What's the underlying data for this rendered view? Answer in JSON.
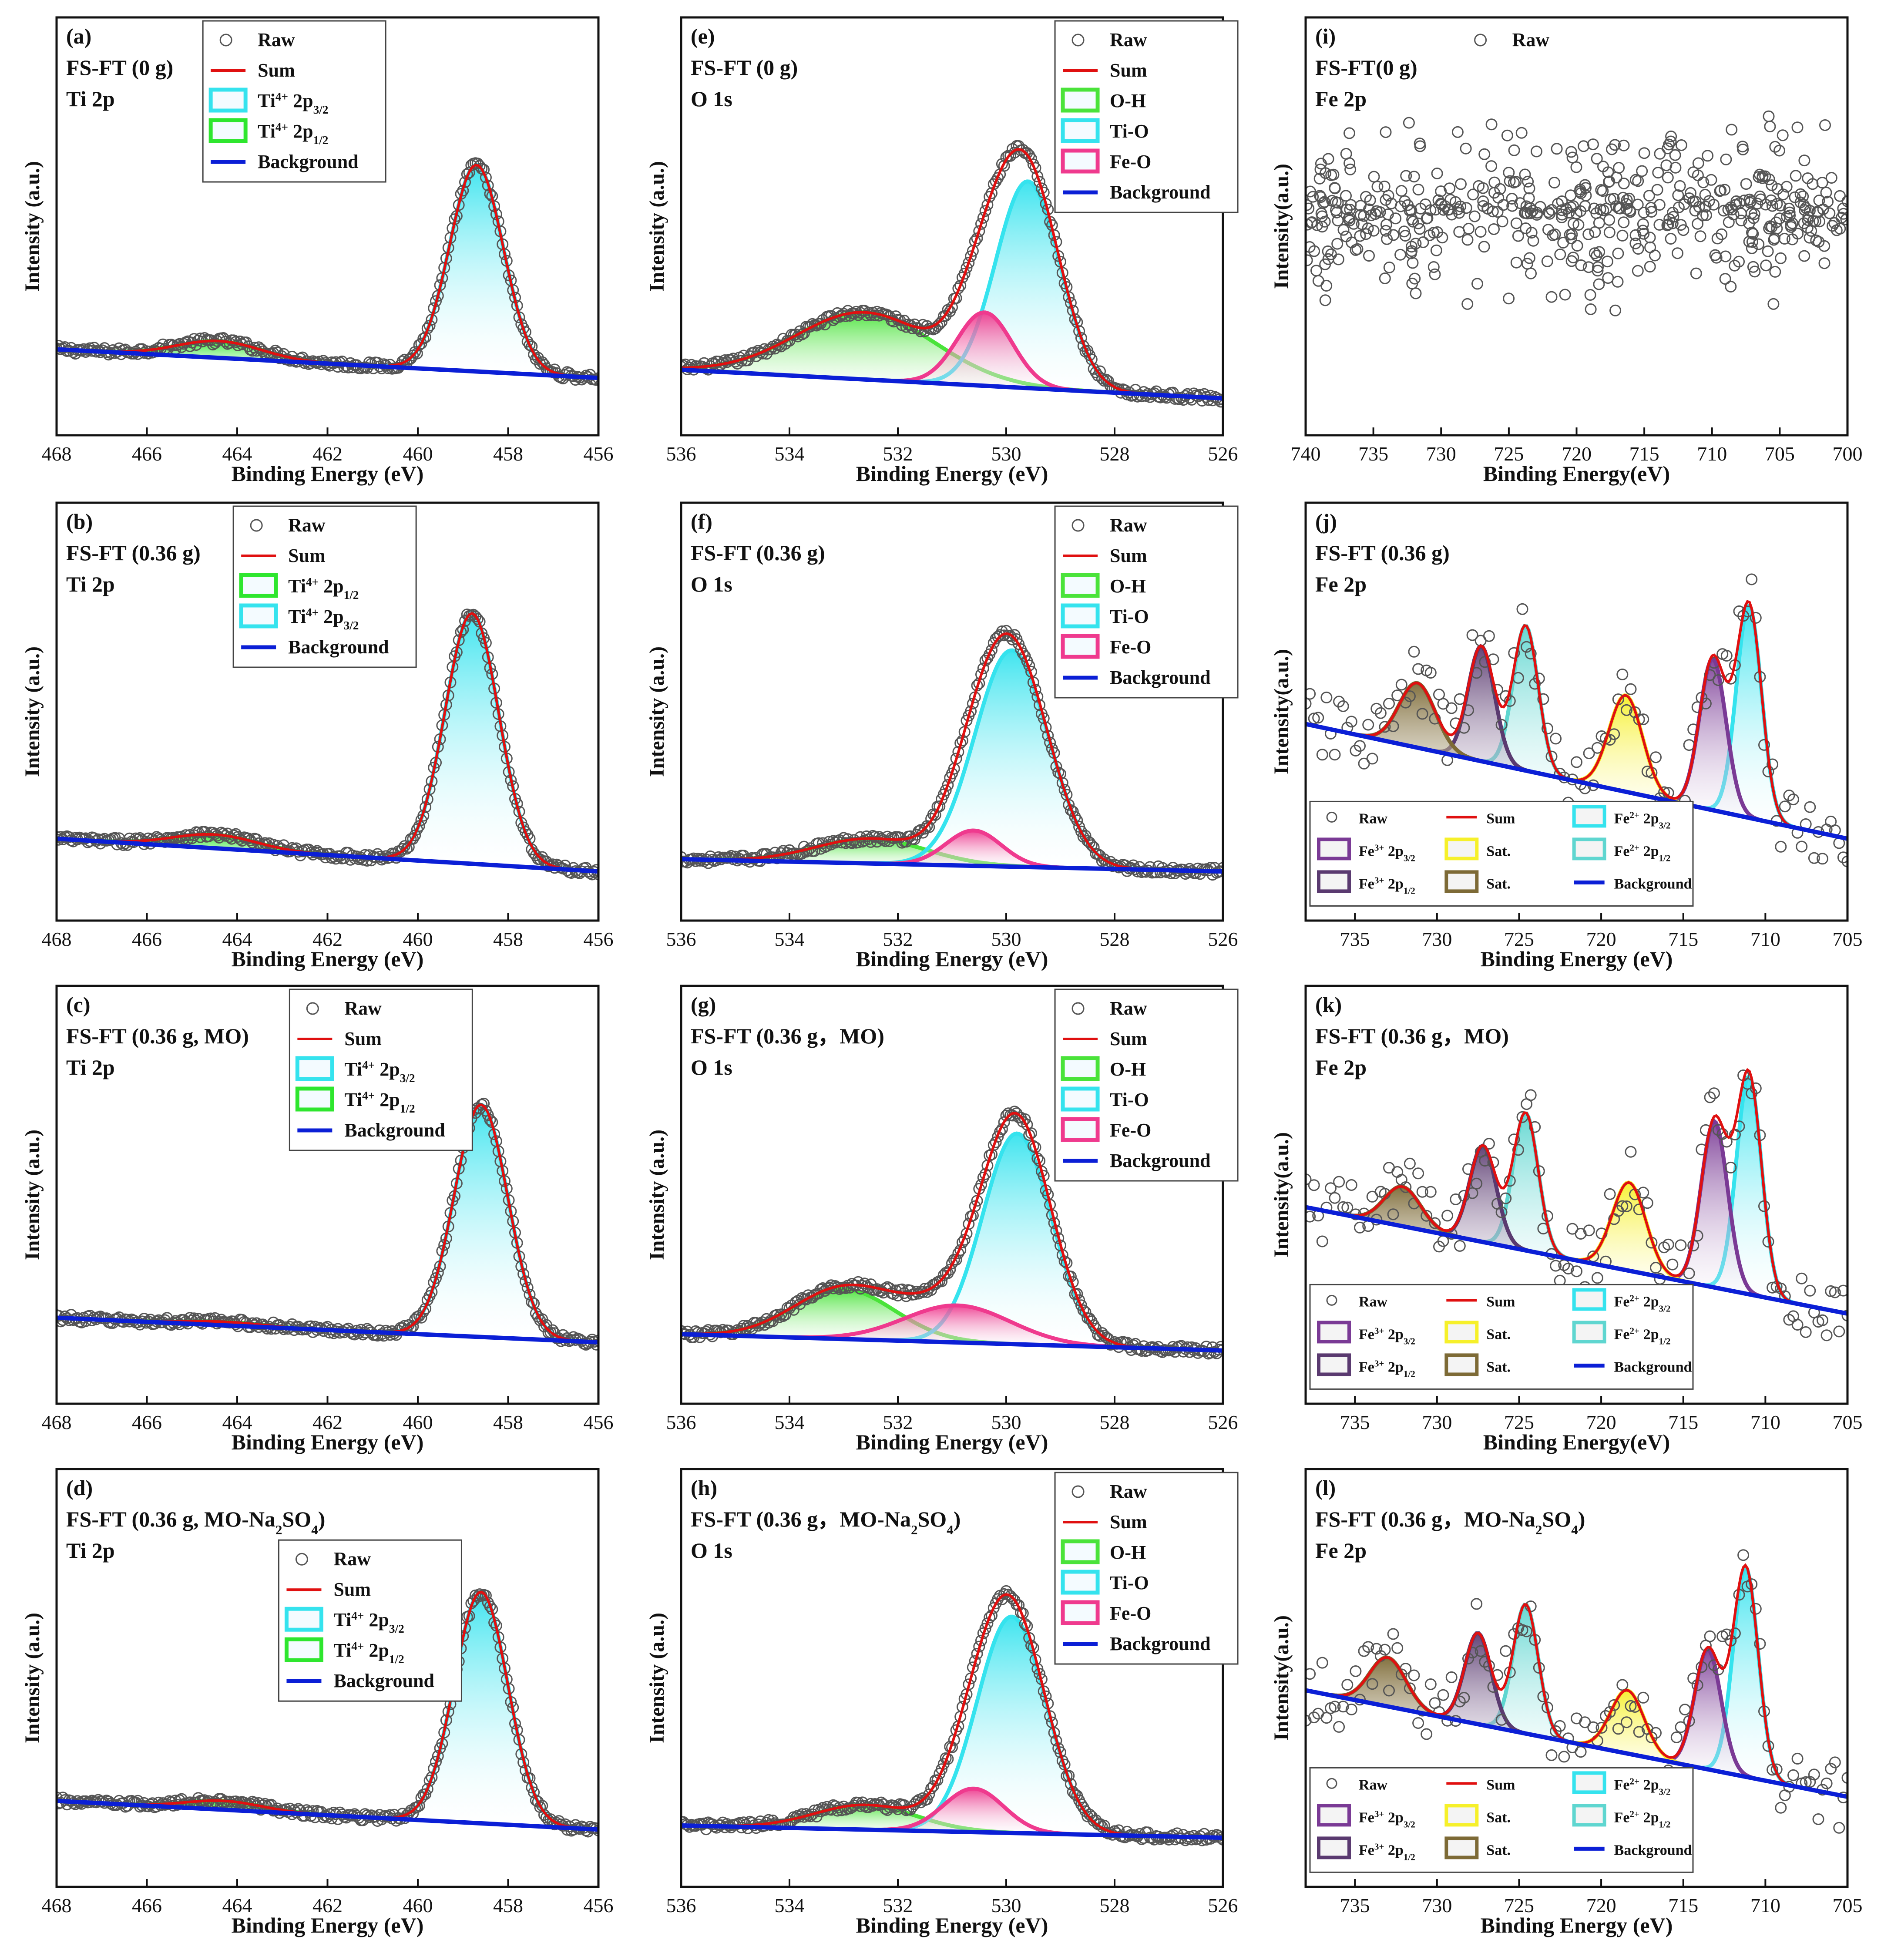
{
  "figure": {
    "panels": [
      {
        "id": "a",
        "title_lines": [
          "(a)",
          "FS-FT (0 g)",
          "Ti 2p"
        ],
        "legend_labels": [
          "Raw",
          "Sum",
          "Ti4+ 2p3/2",
          "Ti4+ 2p1/2",
          "Background"
        ]
      },
      {
        "id": "e",
        "title_lines": [
          "(e)",
          "FS-FT (0 g)",
          "O 1s"
        ],
        "legend_labels": [
          "Raw",
          "Sum",
          "O-H",
          "Ti-O",
          "Fe-O",
          "Background"
        ]
      },
      {
        "id": "i",
        "title_lines": [
          "(i)",
          "FS-FT(0 g)",
          "Fe 2p"
        ],
        "legend_labels": [
          "Raw"
        ]
      },
      {
        "id": "b",
        "title_lines": [
          "(b)",
          "FS-FT (0.36 g)",
          "Ti 2p"
        ],
        "legend_labels": [
          "Raw",
          "Sum",
          "Ti4+ 2p1/2",
          "Ti4+ 2p3/2",
          "Background"
        ]
      },
      {
        "id": "f",
        "title_lines": [
          "(f)",
          "FS-FT (0.36 g)",
          "O 1s"
        ],
        "legend_labels": [
          "Raw",
          "Sum",
          "O-H",
          "Ti-O",
          "Fe-O",
          "Background"
        ]
      },
      {
        "id": "j",
        "title_lines": [
          "(j)",
          "FS-FT (0.36 g)",
          "Fe 2p"
        ],
        "legend_labels": [
          "Raw",
          "Sum",
          "Fe2+2p3/2",
          "Fe3+2p3/2",
          "Sat.",
          "Fe2+2p1/2",
          "Fe3+2p1/2",
          "Sat.",
          "Background"
        ]
      },
      {
        "id": "c",
        "title_lines": [
          "(c)",
          "FS-FT (0.36 g, MO)",
          "Ti 2p"
        ],
        "legend_labels": [
          "Raw",
          "Sum",
          "Ti4+ 2p3/2",
          "Ti4+ 2p1/2",
          "Background"
        ]
      },
      {
        "id": "g",
        "title_lines": [
          "(g)",
          "FS-FT (0.36 g，MO)",
          "O 1s"
        ],
        "legend_labels": [
          "Raw",
          "Sum",
          "O-H",
          "Ti-O",
          "Fe-O",
          "Background"
        ]
      },
      {
        "id": "k",
        "title_lines": [
          "(k)",
          "FS-FT (0.36 g，MO)",
          "Fe 2p"
        ],
        "legend_labels": [
          "Raw",
          "Sum",
          "Fe2+2p3/2",
          "Fe3+2p3/2",
          "Sat.",
          "Fe2+2p1/2",
          "Fe3+2p1/2",
          "Sat.",
          "Background"
        ]
      },
      {
        "id": "d",
        "title_lines": [
          "(d)",
          "FS-FT (0.36 g, MO-Na2SO4)",
          "Ti 2p"
        ],
        "legend_labels": [
          "Raw",
          "Sum",
          "Ti4+ 2p3/2",
          "Ti4+ 2p1/2",
          "Background"
        ]
      },
      {
        "id": "h",
        "title_lines": [
          "(h)",
          "FS-FT (0.36 g，MO-Na2SO4)",
          "O 1s"
        ],
        "legend_labels": [
          "Raw",
          "Sum",
          "O-H",
          "Ti-O",
          "Fe-O",
          "Background"
        ]
      },
      {
        "id": "l",
        "title_lines": [
          "(l)",
          "FS-FT (0.36 g，MO-Na2SO4)",
          "Fe 2p"
        ],
        "legend_labels": [
          "Raw",
          "Sum",
          "Fe2+2p3/2",
          "Fe3+2p3/2",
          "Sat.",
          "Fe2+2p1/2",
          "Fe3+2p1/2",
          "Sat.",
          "Background"
        ]
      }
    ]
  },
  "colors": {
    "raw": "#555555",
    "sum": "#e01010",
    "background": "#0b1fd6",
    "ti_2p3": "#35e3ee",
    "ti_2p1": "#2ee62e",
    "oh": "#4ae33a",
    "tio": "#35e3ee",
    "feo": "#ef3a8e",
    "fe2_2p3": "#35e3ee",
    "fe2_2p1": "#5fd6d0",
    "fe3_2p3": "#7a3a95",
    "fe3_2p1": "#5a3a70",
    "sat1": "#f6f02a",
    "sat2": "#7d6a36"
  },
  "chart_data": [
    {
      "panel": "a",
      "type": "line",
      "title": "FS-FT (0 g)",
      "subtitle": "Ti 2p",
      "xlabel": "Binding Energy (eV)",
      "ylabel": "Intensity (a.u.)",
      "xlim": [
        468,
        456
      ],
      "xticks": [
        468,
        466,
        464,
        462,
        460,
        458,
        456
      ],
      "ylim": [
        0,
        1
      ],
      "background": {
        "x": [
          468,
          456
        ],
        "y": [
          0.21,
          0.14
        ]
      },
      "series": [
        {
          "name": "Ti4+ 2p3/2",
          "center": 458.7,
          "height": 0.66,
          "fwhm": 1.4
        },
        {
          "name": "Ti4+ 2p1/2",
          "center": 464.4,
          "height": 0.23,
          "fwhm": 2.2
        }
      ]
    },
    {
      "panel": "e",
      "type": "line",
      "title": "FS-FT (0 g)",
      "subtitle": "O 1s",
      "xlabel": "Binding Energy (eV)",
      "ylabel": "Intensity (a.u.)",
      "xlim": [
        536,
        526
      ],
      "xticks": [
        536,
        534,
        532,
        530,
        528,
        526
      ],
      "ylim": [
        0,
        1
      ],
      "background": {
        "x": [
          536,
          526
        ],
        "y": [
          0.16,
          0.09
        ]
      },
      "series": [
        {
          "name": "O-H",
          "center": 532.6,
          "height": 0.3,
          "fwhm": 3.0
        },
        {
          "name": "Ti-O",
          "center": 529.6,
          "height": 0.62,
          "fwhm": 1.4
        },
        {
          "name": "Fe-O",
          "center": 530.4,
          "height": 0.3,
          "fwhm": 1.2
        }
      ]
    },
    {
      "panel": "i",
      "type": "scatter",
      "title": "FS-FT(0 g)",
      "subtitle": "Fe 2p",
      "xlabel": "Binding Energy(eV)",
      "ylabel": "Intensity(a.u.)",
      "xlim": [
        740,
        700
      ],
      "xticks": [
        740,
        735,
        730,
        725,
        720,
        715,
        710,
        705,
        700
      ],
      "ylim": [
        0,
        1
      ],
      "series": [
        {
          "name": "Raw",
          "level": 0.55,
          "spread": 0.25
        }
      ]
    },
    {
      "panel": "b",
      "type": "line",
      "title": "FS-FT (0.36 g)",
      "subtitle": "Ti 2p",
      "xlabel": "Binding Energy (eV)",
      "ylabel": "Intensity (a.u.)",
      "xlim": [
        468,
        456
      ],
      "xticks": [
        468,
        466,
        464,
        462,
        460,
        458,
        456
      ],
      "ylim": [
        0,
        1
      ],
      "background": {
        "x": [
          468,
          456
        ],
        "y": [
          0.2,
          0.12
        ]
      },
      "series": [
        {
          "name": "Ti4+ 2p1/2",
          "center": 458.8,
          "height": 0.75,
          "fwhm": 1.4
        },
        {
          "name": "Ti4+ 2p3/2",
          "center": 464.5,
          "height": 0.21,
          "fwhm": 2.2
        }
      ]
    },
    {
      "panel": "f",
      "type": "line",
      "title": "FS-FT (0.36 g)",
      "subtitle": "O 1s",
      "xlabel": "Binding Energy (eV)",
      "ylabel": "Intensity (a.u.)",
      "xlim": [
        536,
        526
      ],
      "xticks": [
        536,
        534,
        532,
        530,
        528,
        526
      ],
      "ylim": [
        0,
        1
      ],
      "background": {
        "x": [
          536,
          526
        ],
        "y": [
          0.15,
          0.12
        ]
      },
      "series": [
        {
          "name": "O-H",
          "center": 532.5,
          "height": 0.2,
          "fwhm": 2.4
        },
        {
          "name": "Ti-O",
          "center": 529.9,
          "height": 0.66,
          "fwhm": 1.6
        },
        {
          "name": "Fe-O",
          "center": 530.6,
          "height": 0.22,
          "fwhm": 1.2
        }
      ]
    },
    {
      "panel": "j",
      "type": "line",
      "title": "FS-FT (0.36 g)",
      "subtitle": "Fe 2p",
      "xlabel": "Binding Energy (eV)",
      "ylabel": "Intensity(a.u.)",
      "xlim": [
        738,
        705
      ],
      "xticks": [
        735,
        730,
        725,
        720,
        715,
        710,
        705
      ],
      "ylim": [
        0,
        1
      ],
      "background": {
        "x": [
          738,
          705
        ],
        "y": [
          0.48,
          0.2
        ]
      },
      "series": [
        {
          "name": "Fe2+2p3/2",
          "center": 711.0,
          "height": 0.77,
          "fwhm": 1.8
        },
        {
          "name": "Fe3+2p3/2",
          "center": 713.2,
          "height": 0.64,
          "fwhm": 1.9
        },
        {
          "name": "Sat.",
          "center": 718.5,
          "height": 0.55,
          "fwhm": 2.4
        },
        {
          "name": "Fe2+2p1/2",
          "center": 724.6,
          "height": 0.72,
          "fwhm": 1.8
        },
        {
          "name": "Fe3+2p1/2",
          "center": 727.3,
          "height": 0.67,
          "fwhm": 1.9
        },
        {
          "name": "Sat.",
          "center": 731.2,
          "height": 0.58,
          "fwhm": 2.6
        }
      ]
    },
    {
      "panel": "c",
      "type": "line",
      "title": "FS-FT (0.36 g, MO)",
      "subtitle": "Ti 2p",
      "xlabel": "Binding Energy (eV)",
      "ylabel": "Intensity (a.u.)",
      "xlim": [
        468,
        456
      ],
      "xticks": [
        468,
        466,
        464,
        462,
        460,
        458,
        456
      ],
      "ylim": [
        0,
        1
      ],
      "background": {
        "x": [
          468,
          456
        ],
        "y": [
          0.21,
          0.15
        ]
      },
      "series": [
        {
          "name": "Ti4+ 2p3/2",
          "center": 458.6,
          "height": 0.73,
          "fwhm": 1.4
        },
        {
          "name": "Ti4+ 2p1/2",
          "center": 464.3,
          "height": 0.2,
          "fwhm": 2.0
        }
      ]
    },
    {
      "panel": "g",
      "type": "line",
      "title": "FS-FT (0.36 g，MO)",
      "subtitle": "O 1s",
      "xlabel": "Binding Energy (eV)",
      "ylabel": "Intensity (a.u.)",
      "xlim": [
        536,
        526
      ],
      "xticks": [
        536,
        534,
        532,
        530,
        528,
        526
      ],
      "ylim": [
        0,
        1
      ],
      "background": {
        "x": [
          536,
          526
        ],
        "y": [
          0.17,
          0.13
        ]
      },
      "series": [
        {
          "name": "O-H",
          "center": 533.0,
          "height": 0.28,
          "fwhm": 2.2
        },
        {
          "name": "Ti-O",
          "center": 529.8,
          "height": 0.66,
          "fwhm": 1.5
        },
        {
          "name": "Fe-O",
          "center": 530.9,
          "height": 0.24,
          "fwhm": 2.3
        }
      ]
    },
    {
      "panel": "k",
      "type": "line",
      "title": "FS-FT (0.36 g，MO)",
      "subtitle": "Fe 2p",
      "xlabel": "Binding Energy(eV)",
      "ylabel": "Intensity(a.u.)",
      "xlim": [
        738,
        705
      ],
      "xticks": [
        735,
        730,
        725,
        720,
        715,
        710,
        705
      ],
      "ylim": [
        0,
        1
      ],
      "background": {
        "x": [
          738,
          705
        ],
        "y": [
          0.48,
          0.22
        ]
      },
      "series": [
        {
          "name": "Fe2+2p3/2",
          "center": 711.0,
          "height": 0.8,
          "fwhm": 1.8
        },
        {
          "name": "Fe3+2p3/2",
          "center": 713.1,
          "height": 0.69,
          "fwhm": 1.9
        },
        {
          "name": "Sat.",
          "center": 718.3,
          "height": 0.54,
          "fwhm": 2.4
        },
        {
          "name": "Fe2+2p1/2",
          "center": 724.6,
          "height": 0.71,
          "fwhm": 1.8
        },
        {
          "name": "Fe3+2p1/2",
          "center": 727.2,
          "height": 0.63,
          "fwhm": 1.9
        },
        {
          "name": "Sat.",
          "center": 732.1,
          "height": 0.53,
          "fwhm": 2.6
        }
      ]
    },
    {
      "panel": "d",
      "type": "line",
      "title": "FS-FT (0.36 g, MO-Na2SO4)",
      "subtitle": "Ti 2p",
      "xlabel": "Binding Energy (eV)",
      "ylabel": "Intensity (a.u.)",
      "xlim": [
        468,
        456
      ],
      "xticks": [
        468,
        466,
        464,
        462,
        460,
        458,
        456
      ],
      "ylim": [
        0,
        1
      ],
      "background": {
        "x": [
          468,
          456
        ],
        "y": [
          0.21,
          0.14
        ]
      },
      "series": [
        {
          "name": "Ti4+ 2p3/2",
          "center": 458.6,
          "height": 0.72,
          "fwhm": 1.4
        },
        {
          "name": "Ti4+ 2p1/2",
          "center": 464.3,
          "height": 0.21,
          "fwhm": 2.0
        }
      ]
    },
    {
      "panel": "h",
      "type": "line",
      "title": "FS-FT (0.36 g，MO-Na2SO4)",
      "subtitle": "O 1s",
      "xlabel": "Binding Energy (eV)",
      "ylabel": "Intensity (a.u.)",
      "xlim": [
        536,
        526
      ],
      "xticks": [
        536,
        534,
        532,
        530,
        528,
        526
      ],
      "ylim": [
        0,
        1
      ],
      "background": {
        "x": [
          536,
          526
        ],
        "y": [
          0.15,
          0.12
        ]
      },
      "series": [
        {
          "name": "O-H",
          "center": 532.6,
          "height": 0.2,
          "fwhm": 2.2
        },
        {
          "name": "Ti-O",
          "center": 529.9,
          "height": 0.66,
          "fwhm": 1.5
        },
        {
          "name": "Fe-O",
          "center": 530.6,
          "height": 0.24,
          "fwhm": 1.3
        }
      ]
    },
    {
      "panel": "l",
      "type": "line",
      "title": "FS-FT (0.36 g，MO-Na2SO4)",
      "subtitle": "Fe 2p",
      "xlabel": "Binding Energy (eV)",
      "ylabel": "Intensity(a.u.)",
      "xlim": [
        738,
        705
      ],
      "xticks": [
        735,
        730,
        725,
        720,
        715,
        710,
        705
      ],
      "ylim": [
        0,
        1
      ],
      "background": {
        "x": [
          738,
          705
        ],
        "y": [
          0.48,
          0.22
        ]
      },
      "series": [
        {
          "name": "Fe2+2p3/2",
          "center": 711.2,
          "height": 0.78,
          "fwhm": 1.8
        },
        {
          "name": "Fe3+2p3/2",
          "center": 713.5,
          "height": 0.58,
          "fwhm": 1.9
        },
        {
          "name": "Sat.",
          "center": 718.4,
          "height": 0.48,
          "fwhm": 2.4
        },
        {
          "name": "Fe2+2p1/2",
          "center": 724.6,
          "height": 0.69,
          "fwhm": 1.8
        },
        {
          "name": "Fe3+2p1/2",
          "center": 727.5,
          "height": 0.62,
          "fwhm": 1.9
        },
        {
          "name": "Sat.",
          "center": 733.0,
          "height": 0.56,
          "fwhm": 2.6
        }
      ]
    }
  ]
}
